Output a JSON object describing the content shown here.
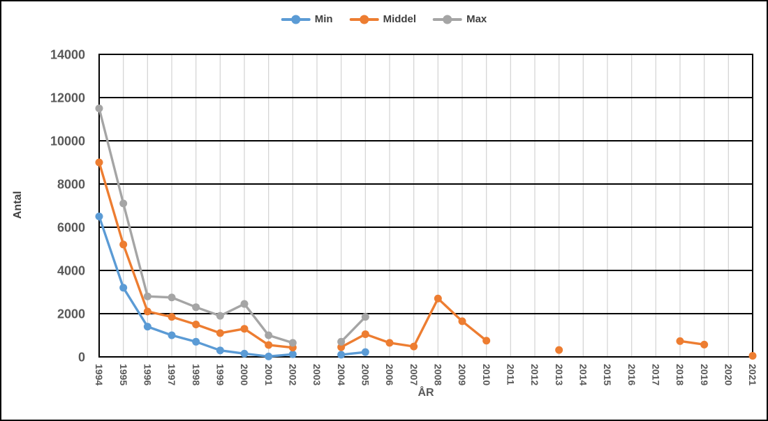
{
  "chart_data": {
    "type": "line",
    "title": "",
    "xlabel": "ÅR",
    "ylabel": "Antal",
    "ylim": [
      0,
      14000
    ],
    "ytick_step": 2000,
    "grid": {
      "horizontal": true,
      "vertical": true
    },
    "legend_position": "top-center",
    "x_tick_rotation_deg": 90,
    "categories": [
      "1994",
      "1995",
      "1996",
      "1997",
      "1998",
      "1999",
      "2000",
      "2001",
      "2002",
      "2003",
      "2004",
      "2005",
      "2006",
      "2007",
      "2008",
      "2009",
      "2010",
      "2011",
      "2012",
      "2013",
      "2014",
      "2015",
      "2016",
      "2017",
      "2018",
      "2019",
      "2020",
      "2021"
    ],
    "series": [
      {
        "name": "Min",
        "color": "#5B9BD5",
        "values": [
          6500,
          3200,
          1400,
          1000,
          700,
          300,
          150,
          20,
          120,
          null,
          100,
          220,
          null,
          null,
          null,
          null,
          null,
          null,
          null,
          null,
          null,
          null,
          null,
          null,
          null,
          null,
          null,
          null
        ]
      },
      {
        "name": "Middel",
        "color": "#ED7D31",
        "values": [
          9000,
          5200,
          2100,
          1850,
          1500,
          1100,
          1300,
          550,
          430,
          null,
          450,
          1050,
          650,
          480,
          2700,
          1650,
          750,
          null,
          null,
          320,
          null,
          null,
          null,
          null,
          730,
          570,
          null,
          50
        ]
      },
      {
        "name": "Max",
        "color": "#A5A5A5",
        "values": [
          11500,
          7100,
          2800,
          2750,
          2300,
          1900,
          2450,
          1000,
          650,
          null,
          700,
          1850,
          null,
          null,
          null,
          null,
          null,
          null,
          null,
          null,
          null,
          null,
          null,
          null,
          null,
          null,
          null,
          null
        ]
      }
    ],
    "colors": {
      "axis_line": "#000000",
      "major_gridline": "#000000",
      "minor_vertical_gridline": "#D6D6D6",
      "tick_label": "#595959",
      "axis_title": "#404040"
    }
  }
}
